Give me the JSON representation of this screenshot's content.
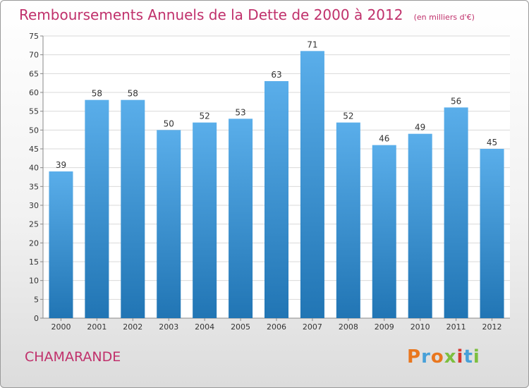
{
  "header": {
    "title": "Remboursements Annuels de la Dette de 2000 à 2012",
    "subtitle": "(en milliers d'€)"
  },
  "footer": {
    "commune": "CHAMARANDE",
    "logo_text": "Proxiti"
  },
  "colors": {
    "title": "#c0306b",
    "bar_top": "#5aaeea",
    "bar_bottom": "#2175b4",
    "grid": "#d9d9d9",
    "axis": "#888888",
    "logo": [
      "#e9771f",
      "#47a0d8",
      "#e9771f",
      "#7dbf3f",
      "#d6372f",
      "#47a0d8",
      "#7dbf3f"
    ]
  },
  "chart_data": {
    "type": "bar",
    "title": "Remboursements Annuels de la Dette de 2000 à 2012",
    "subtitle": "(en milliers d'€)",
    "xlabel": "",
    "ylabel": "",
    "categories": [
      "2000",
      "2001",
      "2002",
      "2003",
      "2004",
      "2005",
      "2006",
      "2007",
      "2008",
      "2009",
      "2010",
      "2011",
      "2012"
    ],
    "values": [
      39,
      58,
      58,
      50,
      52,
      53,
      63,
      71,
      52,
      46,
      49,
      56,
      45
    ],
    "ylim": [
      0,
      75
    ],
    "yticks": [
      0,
      5,
      10,
      15,
      20,
      25,
      30,
      35,
      40,
      45,
      50,
      55,
      60,
      65,
      70,
      75
    ],
    "grid": true,
    "legend": "none"
  }
}
